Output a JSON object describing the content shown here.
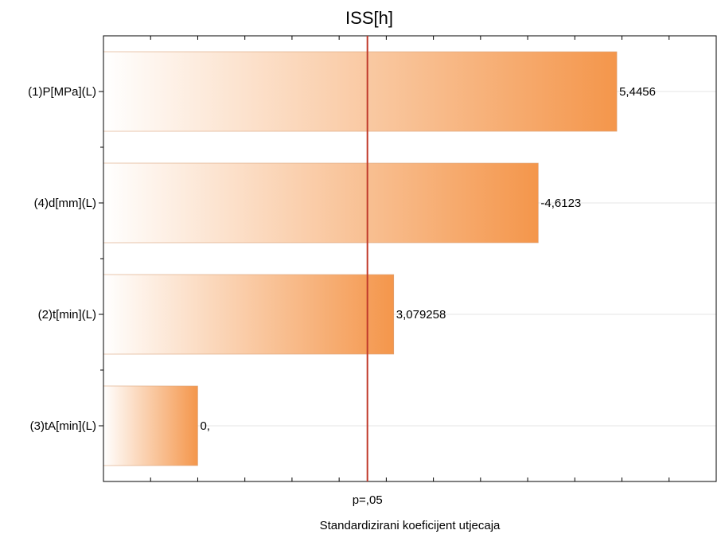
{
  "chart_data": {
    "type": "bar",
    "orientation": "horizontal",
    "title": "ISS[h]",
    "xlabel": "Standardizirani koeficijent utjecaja",
    "ylabel": "",
    "categories": [
      "(1)P[MPa](L)",
      "(4)d[mm](L)",
      "(2)t[min](L)",
      "(3)tA[min](L)"
    ],
    "values": [
      5.4456,
      4.6123,
      3.079258,
      0.0
    ],
    "value_labels": [
      "5,4456",
      "-4,6123",
      "3,079258",
      "0,"
    ],
    "reference_line": {
      "label": "p=,05",
      "value": 2.8,
      "color": "#c0392b"
    },
    "bar_color": "#f4964b",
    "xlim": [
      0.0,
      6.5
    ],
    "grid": true,
    "legend": "none"
  }
}
